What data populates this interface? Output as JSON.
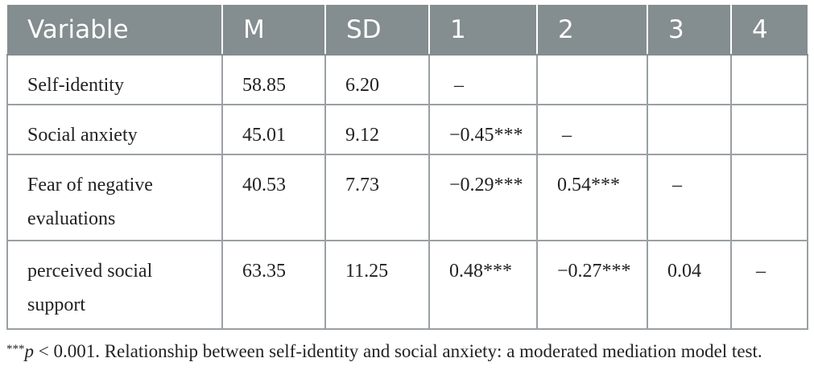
{
  "table": {
    "headers": [
      "Variable",
      "M",
      "SD",
      "1",
      "2",
      "3",
      "4"
    ],
    "rows": [
      {
        "variable": "Self-identity",
        "m": "58.85",
        "sd": "6.20",
        "c1": "–",
        "c2": "",
        "c3": "",
        "c4": ""
      },
      {
        "variable": "Social anxiety",
        "m": "45.01",
        "sd": "9.12",
        "c1": "−0.45***",
        "c2": "–",
        "c3": "",
        "c4": ""
      },
      {
        "variable": "Fear of negative evaluations",
        "m": "40.53",
        "sd": "7.73",
        "c1": "−0.29***",
        "c2": "0.54***",
        "c3": "–",
        "c4": ""
      },
      {
        "variable": "perceived social support",
        "m": "63.35",
        "sd": "11.25",
        "c1": "0.48***",
        "c2": "−0.27***",
        "c3": "0.04",
        "c4": "–"
      }
    ]
  },
  "footnote": {
    "marker": "***",
    "p_symbol": "p",
    "text": " < 0.001. Relationship between self-identity and social anxiety: a moderated mediation model test."
  },
  "colors": {
    "header_bg": "#848d8f",
    "header_text": "#ffffff",
    "border": "#9aa0a3"
  }
}
